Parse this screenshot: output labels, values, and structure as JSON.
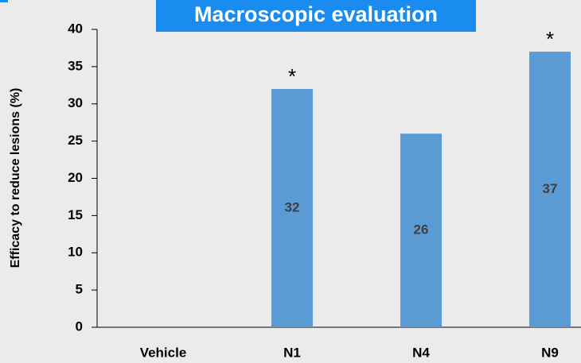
{
  "chart_data": {
    "type": "bar",
    "title": "Macroscopic evaluation",
    "y_label": "Efficacy to reduce lesions (%)",
    "categories": [
      "Vehicle",
      "N1",
      "N4",
      "N9"
    ],
    "values": [
      0,
      32,
      26,
      37
    ],
    "value_labels": [
      null,
      "32",
      "26",
      "37"
    ],
    "significance": [
      null,
      "*",
      null,
      "*"
    ],
    "color": "#5b9bd5",
    "ylim": [
      0,
      40
    ],
    "yticks": [
      0,
      5,
      10,
      15,
      20,
      25,
      30,
      35,
      40
    ],
    "grid": false
  }
}
